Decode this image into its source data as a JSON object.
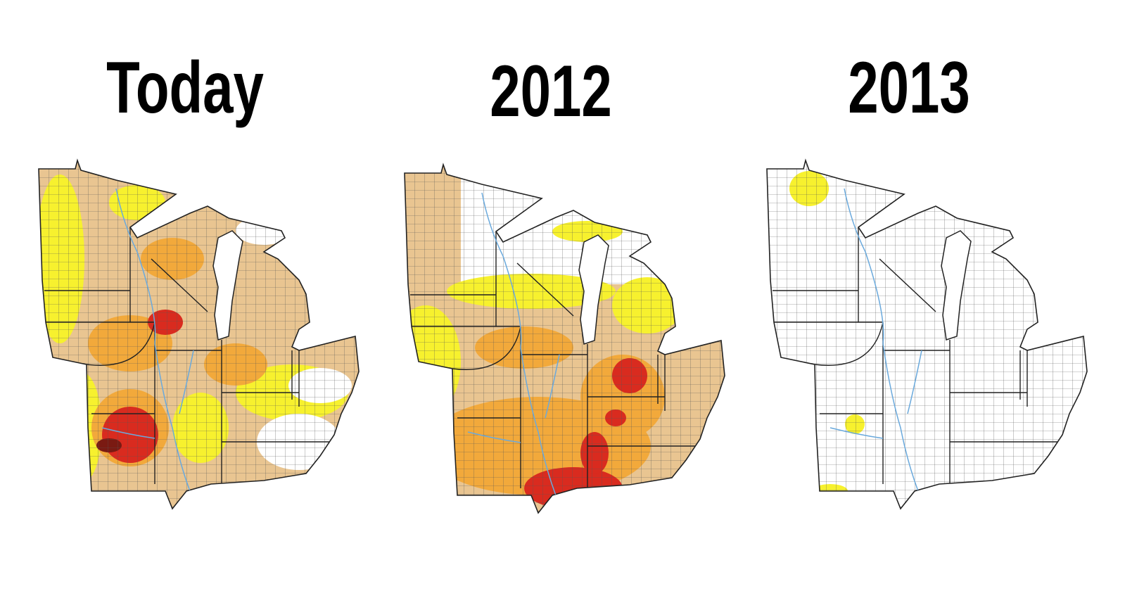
{
  "titles": [
    "Today",
    "2012",
    "2013"
  ]
}
